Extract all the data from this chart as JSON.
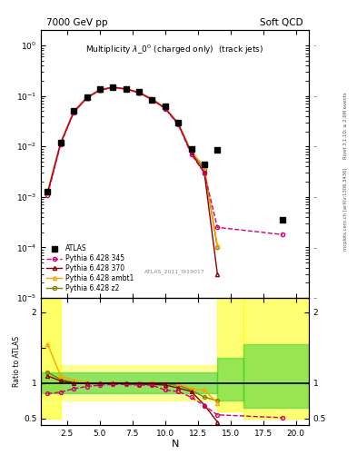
{
  "title_left": "7000 GeV pp",
  "title_right": "Soft QCD",
  "plot_title": "Multiplicity $\\lambda\\_0^0$ (charged only)  (track jets)",
  "watermark": "ATLAS_2011_I919017",
  "right_label_top": "Rivet 3.1.10; ≥ 2.6M events",
  "right_label_bot": "mcplots.cern.ch [arXiv:1306.3436]",
  "atlas_x": [
    1,
    2,
    3,
    4,
    5,
    6,
    7,
    8,
    9,
    10,
    11,
    12,
    13,
    14,
    19
  ],
  "atlas_y": [
    0.0013,
    0.012,
    0.05,
    0.095,
    0.135,
    0.15,
    0.14,
    0.12,
    0.085,
    0.062,
    0.03,
    0.009,
    0.0045,
    0.0085,
    0.00035
  ],
  "py345_x": [
    1,
    2,
    3,
    4,
    5,
    6,
    7,
    8,
    9,
    10,
    11,
    12,
    13,
    14,
    19
  ],
  "py345_y": [
    0.0011,
    0.011,
    0.047,
    0.09,
    0.13,
    0.147,
    0.136,
    0.115,
    0.084,
    0.056,
    0.027,
    0.007,
    0.003,
    0.00025,
    0.00018
  ],
  "py370_x": [
    1,
    2,
    3,
    4,
    5,
    6,
    7,
    8,
    9,
    10,
    11,
    12,
    13,
    14
  ],
  "py370_y": [
    0.0012,
    0.0115,
    0.048,
    0.091,
    0.131,
    0.148,
    0.137,
    0.116,
    0.085,
    0.057,
    0.028,
    0.0075,
    0.003,
    3e-05
  ],
  "pyambt_x": [
    1,
    2,
    3,
    4,
    5,
    6,
    7,
    8,
    9,
    10,
    11,
    12,
    13,
    14
  ],
  "pyambt_y": [
    0.0013,
    0.012,
    0.05,
    0.094,
    0.134,
    0.15,
    0.139,
    0.119,
    0.088,
    0.059,
    0.029,
    0.008,
    0.004,
    0.00011
  ],
  "pyz2_x": [
    1,
    2,
    3,
    4,
    5,
    6,
    7,
    8,
    9,
    10,
    11,
    12,
    13,
    14
  ],
  "pyz2_y": [
    0.00125,
    0.0118,
    0.049,
    0.093,
    0.133,
    0.149,
    0.138,
    0.118,
    0.087,
    0.058,
    0.029,
    0.0078,
    0.0035,
    0.0001
  ],
  "ratio_345_x": [
    1,
    2,
    3,
    4,
    5,
    6,
    7,
    8,
    9,
    10,
    11,
    12,
    13,
    14,
    19
  ],
  "ratio_345_y": [
    0.85,
    0.87,
    0.92,
    0.95,
    0.97,
    0.98,
    0.98,
    0.97,
    0.97,
    0.9,
    0.88,
    0.8,
    0.68,
    0.55,
    0.51
  ],
  "ratio_370_x": [
    1,
    2,
    3,
    4,
    5,
    6,
    7,
    8,
    9,
    10,
    11,
    12,
    13,
    14
  ],
  "ratio_370_y": [
    1.1,
    1.03,
    1.0,
    0.99,
    0.99,
    1.0,
    0.99,
    0.98,
    0.98,
    0.97,
    0.93,
    0.88,
    0.69,
    0.45
  ],
  "ratio_ambt_x": [
    1,
    2,
    3,
    4,
    5,
    6,
    7,
    8,
    9,
    10,
    11,
    12,
    13,
    14
  ],
  "ratio_ambt_y": [
    1.55,
    1.1,
    1.04,
    1.01,
    1.0,
    1.01,
    1.0,
    1.0,
    1.01,
    1.0,
    0.99,
    0.92,
    0.9,
    0.72
  ],
  "ratio_z2_x": [
    1,
    2,
    3,
    4,
    5,
    6,
    7,
    8,
    9,
    10,
    11,
    12,
    13,
    14
  ],
  "ratio_z2_y": [
    1.15,
    1.05,
    1.01,
    0.99,
    0.99,
    1.0,
    0.99,
    0.99,
    1.0,
    0.98,
    0.97,
    0.9,
    0.8,
    0.75
  ],
  "color_345": "#d4006e",
  "color_370": "#8b0000",
  "color_ambt": "#ffa500",
  "color_z2": "#808000",
  "color_atlas": "black",
  "xlim": [
    0.5,
    21
  ],
  "ylim_main": [
    1e-05,
    2.0
  ],
  "ylim_ratio": [
    0.4,
    2.2
  ]
}
